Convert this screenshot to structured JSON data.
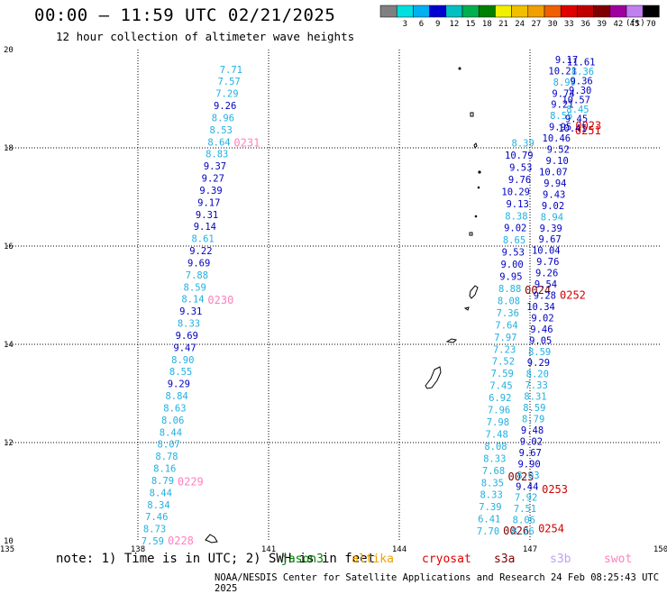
{
  "header": {
    "title": "00:00 – 11:59 UTC 02/21/2025",
    "subtitle": "12 hour collection of altimeter wave heights"
  },
  "legend": {
    "unit": "(ft)",
    "bins": [
      {
        "label": "",
        "color": "#808080"
      },
      {
        "label": "3",
        "color": "#00e0e0"
      },
      {
        "label": "6",
        "color": "#00b0f0"
      },
      {
        "label": "9",
        "color": "#0000d0"
      },
      {
        "label": "12",
        "color": "#00c0c0"
      },
      {
        "label": "15",
        "color": "#00b050"
      },
      {
        "label": "18",
        "color": "#008000"
      },
      {
        "label": "21",
        "color": "#f0f000"
      },
      {
        "label": "24",
        "color": "#f0c000"
      },
      {
        "label": "27",
        "color": "#f0a000"
      },
      {
        "label": "30",
        "color": "#f06000"
      },
      {
        "label": "33",
        "color": "#e00000"
      },
      {
        "label": "36",
        "color": "#c00000"
      },
      {
        "label": "39",
        "color": "#800000"
      },
      {
        "label": "42",
        "color": "#a000a0"
      },
      {
        "label": "45",
        "color": "#c080f0"
      },
      {
        "label": "70",
        "color": "#000000"
      }
    ]
  },
  "map": {
    "lon_range": [
      135,
      150
    ],
    "lat_range": [
      10,
      20
    ],
    "x_ticks": [
      "135",
      "138",
      "141",
      "144",
      "147",
      "150"
    ],
    "y_ticks": [
      "20",
      "18",
      "16",
      "14",
      "12",
      "10"
    ],
    "grid_lon": [
      138,
      141,
      144,
      147
    ],
    "grid_lat": [
      12,
      14,
      16,
      18
    ]
  },
  "tracks": [
    {
      "id": "left",
      "label_color": "#ff80c0",
      "pass_labels": [
        {
          "text": "0231",
          "lat": 18.1
        },
        {
          "text": "0230",
          "lat": 14.9
        },
        {
          "text": "0229",
          "lat": 11.2
        },
        {
          "text": "0228",
          "lat": 10.0
        }
      ],
      "lon_start": 140.4,
      "lat_start": 19.6,
      "lon_end": 138.6,
      "lat_end": 10.0,
      "values": [
        "7.71",
        "7.57",
        "7.29",
        "9.26",
        "8.96",
        "8.53",
        "8.64",
        "8.83",
        "9.37",
        "9.27",
        "9.39",
        "9.17",
        "9.31",
        "9.14",
        "8.61",
        "9.22",
        "9.69",
        "7.88",
        "8.59",
        "8.14",
        "9.31",
        "8.33",
        "9.69",
        "9.47",
        "8.90",
        "8.55",
        "9.29",
        "8.84",
        "8.63",
        "8.06",
        "8.44",
        "8.07",
        "8.78",
        "8.16",
        "8.79",
        "8.44",
        "8.34",
        "7.46",
        "8.73",
        "7.59"
      ]
    },
    {
      "id": "middle",
      "label_color": "#800000",
      "pass_labels": [
        {
          "text": "0024",
          "lat": 15.1
        },
        {
          "text": "0025",
          "lat": 11.3
        },
        {
          "text": "0026",
          "lat": 10.2
        }
      ],
      "lon_start": 147.1,
      "lat_start": 18.1,
      "lon_end": 146.3,
      "lat_end": 10.2,
      "values": [
        "8.39",
        "10.79",
        "9.53",
        "9.76",
        "10.29",
        "9.13",
        "8.38",
        "9.02",
        "8.65",
        "9.53",
        "9.00",
        "9.95",
        "8.88",
        "8.08",
        "7.36",
        "7.64",
        "7.97",
        "7.23",
        "7.52",
        "7.59",
        "7.45",
        "6.92",
        "7.96",
        "7.98",
        "7.48",
        "8.08",
        "8.33",
        "7.68",
        "8.35",
        "8.33",
        "7.39",
        "6.41",
        "7.70"
      ]
    },
    {
      "id": "right",
      "label_color": "#d00000",
      "pass_labels": [
        {
          "text": "0023",
          "lat": 18.45
        },
        {
          "text": "0251",
          "lat": 18.35
        },
        {
          "text": "0252",
          "lat": 15.0
        },
        {
          "text": "0253",
          "lat": 11.05
        },
        {
          "text": "0254",
          "lat": 10.25
        }
      ],
      "lon_start": 148.1,
      "lat_start": 19.8,
      "lon_end": 147.1,
      "lat_end": 10.2,
      "values": [
        "9.17",
        "10.21",
        "8.99",
        "9.74",
        "9.21",
        "8.55",
        "9.95",
        "10.46",
        "9.52",
        "9.10",
        "10.07",
        "9.94",
        "9.43",
        "9.02",
        "8.94",
        "9.39",
        "9.67",
        "10.04",
        "9.76",
        "9.26",
        "9.54",
        "9.28",
        "10.34",
        "9.02",
        "9.46",
        "9.05",
        "8.59",
        "9.29",
        "8.20",
        "7.33",
        "8.31",
        "8.59",
        "8.79",
        "9.48",
        "9.02",
        "9.67",
        "9.90",
        "8.03",
        "9.44",
        "7.92",
        "7.51",
        "8.06",
        "8.26"
      ]
    },
    {
      "id": "top-right",
      "label_color": "#d00000",
      "pass_labels": [],
      "lon_start": 148.5,
      "lat_start": 19.75,
      "lon_end": 148.3,
      "lat_end": 18.4,
      "values": [
        "11.61",
        "8.36",
        "9.36",
        "9.30",
        "10.57",
        "8.45",
        "9.45",
        "10.41"
      ]
    }
  ],
  "footer": {
    "note": "note: 1) Time is in UTC; 2) SWH is in feet",
    "satellites": [
      {
        "name": "jason3",
        "color": "#008000"
      },
      {
        "name": "altika",
        "color": "#f0a000"
      },
      {
        "name": "cryosat",
        "color": "#e00000"
      },
      {
        "name": "s3a",
        "color": "#800000"
      },
      {
        "name": "s3b",
        "color": "#c0a0f0"
      },
      {
        "name": "swot",
        "color": "#ff80c0"
      }
    ],
    "credit": "NOAA/NESDIS Center for Satellite Applications and Research    24 Feb 08:25:43 UTC 2025"
  }
}
